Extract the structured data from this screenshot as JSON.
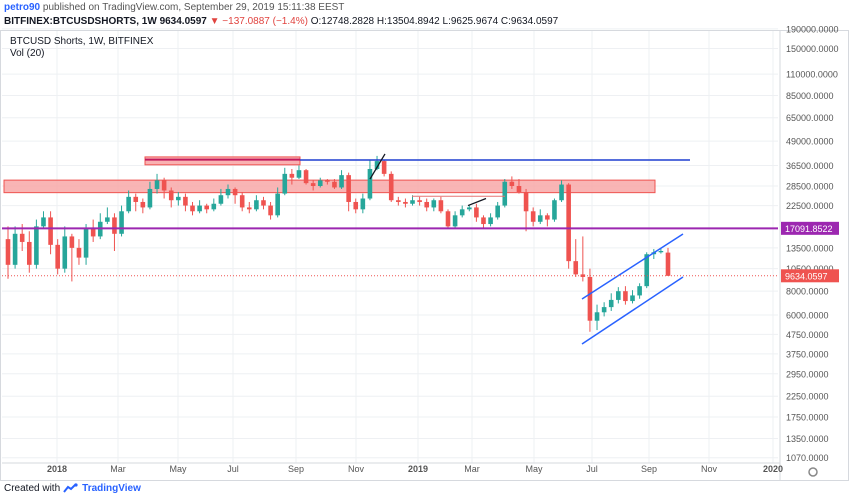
{
  "header": {
    "author": "petro90",
    "published_text": "published on TradingView.com, September 29, 2019 15:11:38 EEST",
    "symbol": "BITFINEX:BTCUSDSHORTS, 1W",
    "last": "9634.0597",
    "change": "▼ −137.0887 (−1.4%)",
    "o_label": "O:",
    "o_value": "12748.2828",
    "h_label": "H:",
    "h_value": "13504.8942",
    "l_label": "L:",
    "l_value": "9625.9674",
    "c_label": "C:",
    "c_value": "9634.0597"
  },
  "legend": {
    "title": "BTCUSD Shorts, 1W, BITFINEX",
    "vol": "Vol (20)"
  },
  "footer": {
    "created_with": "Created with",
    "brand": "TradingView"
  },
  "colors": {
    "up": "#26a69a",
    "down": "#ef5350",
    "zone": "#f8a3a3",
    "purple": "#9c27b0",
    "blue": "#2962ff",
    "price": "#ef5350"
  },
  "chart_data": {
    "type": "candlestick",
    "y_scale": "log",
    "y_ticks": [
      "190000.0000",
      "150000.0000",
      "110000.0000",
      "85000.0000",
      "65000.0000",
      "49000.0000",
      "36500.0000",
      "28500.0000",
      "22500.0000",
      "17091.8522",
      "13500.0000",
      "10500.0000",
      "9634.0597",
      "8000.0000",
      "6000.0000",
      "4750.0000",
      "3750.0000",
      "2950.0000",
      "2250.0000",
      "1750.0000",
      "1350.0000",
      "1070.0000"
    ],
    "x_ticks": [
      "2018",
      "Mar",
      "May",
      "Jul",
      "Sep",
      "Nov",
      "2019",
      "Mar",
      "May",
      "Jul",
      "Sep",
      "Nov",
      "2020"
    ],
    "last_price": 9634.0597,
    "level_price": 17091.8522,
    "weekly_candles_approx": [
      [
        15000,
        11000,
        17500,
        9300
      ],
      [
        11000,
        16000,
        17500,
        10500
      ],
      [
        16000,
        14500,
        18000,
        13000
      ],
      [
        14500,
        11000,
        16500,
        10000
      ],
      [
        11000,
        17500,
        19000,
        10500
      ],
      [
        17500,
        19500,
        21000,
        17000
      ],
      [
        19500,
        14000,
        21000,
        12500
      ],
      [
        14000,
        10500,
        15000,
        9800
      ],
      [
        10500,
        15500,
        17500,
        10000
      ],
      [
        15500,
        13500,
        16000,
        9000
      ],
      [
        13500,
        12000,
        15000,
        11000
      ],
      [
        12000,
        17000,
        18000,
        11000
      ],
      [
        17000,
        15500,
        19000,
        14500
      ],
      [
        15500,
        18500,
        20500,
        15000
      ],
      [
        18500,
        19500,
        22000,
        18000
      ],
      [
        19500,
        16000,
        20500,
        13000
      ],
      [
        16000,
        21000,
        22500,
        15500
      ],
      [
        21000,
        25000,
        27000,
        20500
      ],
      [
        25000,
        23500,
        26000,
        21000
      ],
      [
        23500,
        22000,
        24500,
        20500
      ],
      [
        22000,
        27500,
        30000,
        21500
      ],
      [
        27500,
        30500,
        33000,
        26000
      ],
      [
        30500,
        27000,
        31500,
        24500
      ],
      [
        27000,
        24000,
        28000,
        22000
      ],
      [
        24000,
        25000,
        26500,
        22500
      ],
      [
        25000,
        22500,
        26000,
        21000
      ],
      [
        22500,
        21000,
        23500,
        20000
      ],
      [
        21000,
        22500,
        24000,
        20500
      ],
      [
        22500,
        21500,
        23000,
        20500
      ],
      [
        21500,
        23000,
        24500,
        21000
      ],
      [
        23000,
        25500,
        27500,
        22500
      ],
      [
        25500,
        27500,
        29000,
        24500
      ],
      [
        27500,
        25500,
        28000,
        23000
      ],
      [
        25500,
        22000,
        26500,
        21000
      ],
      [
        22000,
        21500,
        23500,
        20500
      ],
      [
        21500,
        24000,
        25500,
        21000
      ],
      [
        24000,
        22500,
        25000,
        21500
      ],
      [
        22500,
        20000,
        23500,
        19000
      ],
      [
        20000,
        26000,
        28000,
        19500
      ],
      [
        26000,
        33000,
        35500,
        25500
      ],
      [
        33000,
        31500,
        35000,
        29000
      ],
      [
        31500,
        34500,
        36500,
        31000
      ],
      [
        34500,
        29500,
        35000,
        29000
      ],
      [
        29500,
        28500,
        30500,
        27000
      ],
      [
        28500,
        30500,
        31500,
        28000
      ],
      [
        30500,
        30000,
        31000,
        29000
      ],
      [
        30000,
        28000,
        31000,
        27500
      ],
      [
        28000,
        32500,
        34500,
        27500
      ],
      [
        32500,
        23500,
        33500,
        21000
      ],
      [
        23500,
        21500,
        24500,
        20500
      ],
      [
        21500,
        24500,
        26000,
        20500
      ],
      [
        24500,
        35000,
        39000,
        24000
      ],
      [
        35000,
        38500,
        41000,
        34500
      ],
      [
        38500,
        33000,
        39000,
        32000
      ],
      [
        33000,
        24000,
        34000,
        23500
      ],
      [
        24000,
        23500,
        25000,
        22500
      ],
      [
        23500,
        23000,
        24500,
        22000
      ],
      [
        23000,
        24000,
        25500,
        22500
      ],
      [
        24000,
        23500,
        25000,
        22500
      ],
      [
        23500,
        22000,
        24500,
        21000
      ],
      [
        22000,
        24000,
        24500,
        21000
      ],
      [
        24000,
        21000,
        25000,
        20500
      ],
      [
        21000,
        17500,
        21500,
        17000
      ],
      [
        17500,
        20000,
        21000,
        17000
      ],
      [
        20000,
        21500,
        22500,
        19500
      ],
      [
        21500,
        22000,
        22500,
        21000
      ],
      [
        22000,
        19500,
        23000,
        18500
      ],
      [
        19500,
        18000,
        20000,
        17000
      ],
      [
        18000,
        19500,
        20500,
        17500
      ],
      [
        19500,
        22500,
        23500,
        19000
      ],
      [
        22500,
        30000,
        31000,
        22000
      ],
      [
        30000,
        28500,
        32000,
        27500
      ],
      [
        28500,
        26500,
        31000,
        26000
      ],
      [
        26500,
        21000,
        27500,
        16500
      ],
      [
        21000,
        18500,
        22000,
        17500
      ],
      [
        18500,
        20000,
        21500,
        18000
      ],
      [
        20000,
        19000,
        20500,
        17500
      ],
      [
        19000,
        24000,
        24500,
        18500
      ],
      [
        24000,
        29000,
        30500,
        23500
      ],
      [
        29000,
        11500,
        29500,
        10500
      ],
      [
        11500,
        9800,
        15000,
        9500
      ],
      [
        9800,
        9500,
        15500,
        9000
      ],
      [
        9500,
        5600,
        10500,
        4900
      ],
      [
        5600,
        6200,
        6800,
        5000
      ],
      [
        6200,
        6600,
        7000,
        5900
      ],
      [
        6600,
        7200,
        7800,
        6300
      ],
      [
        7200,
        8000,
        8400,
        6900
      ],
      [
        8000,
        7100,
        8500,
        6800
      ],
      [
        7100,
        7600,
        8100,
        6900
      ],
      [
        7600,
        8500,
        8800,
        7300
      ],
      [
        8500,
        12500,
        12800,
        8300
      ],
      [
        12500,
        12800,
        13300,
        11800
      ],
      [
        12800,
        13000,
        13500,
        12600
      ],
      [
        12748.2828,
        9634.0597,
        13504.8942,
        9625.9674
      ]
    ]
  }
}
